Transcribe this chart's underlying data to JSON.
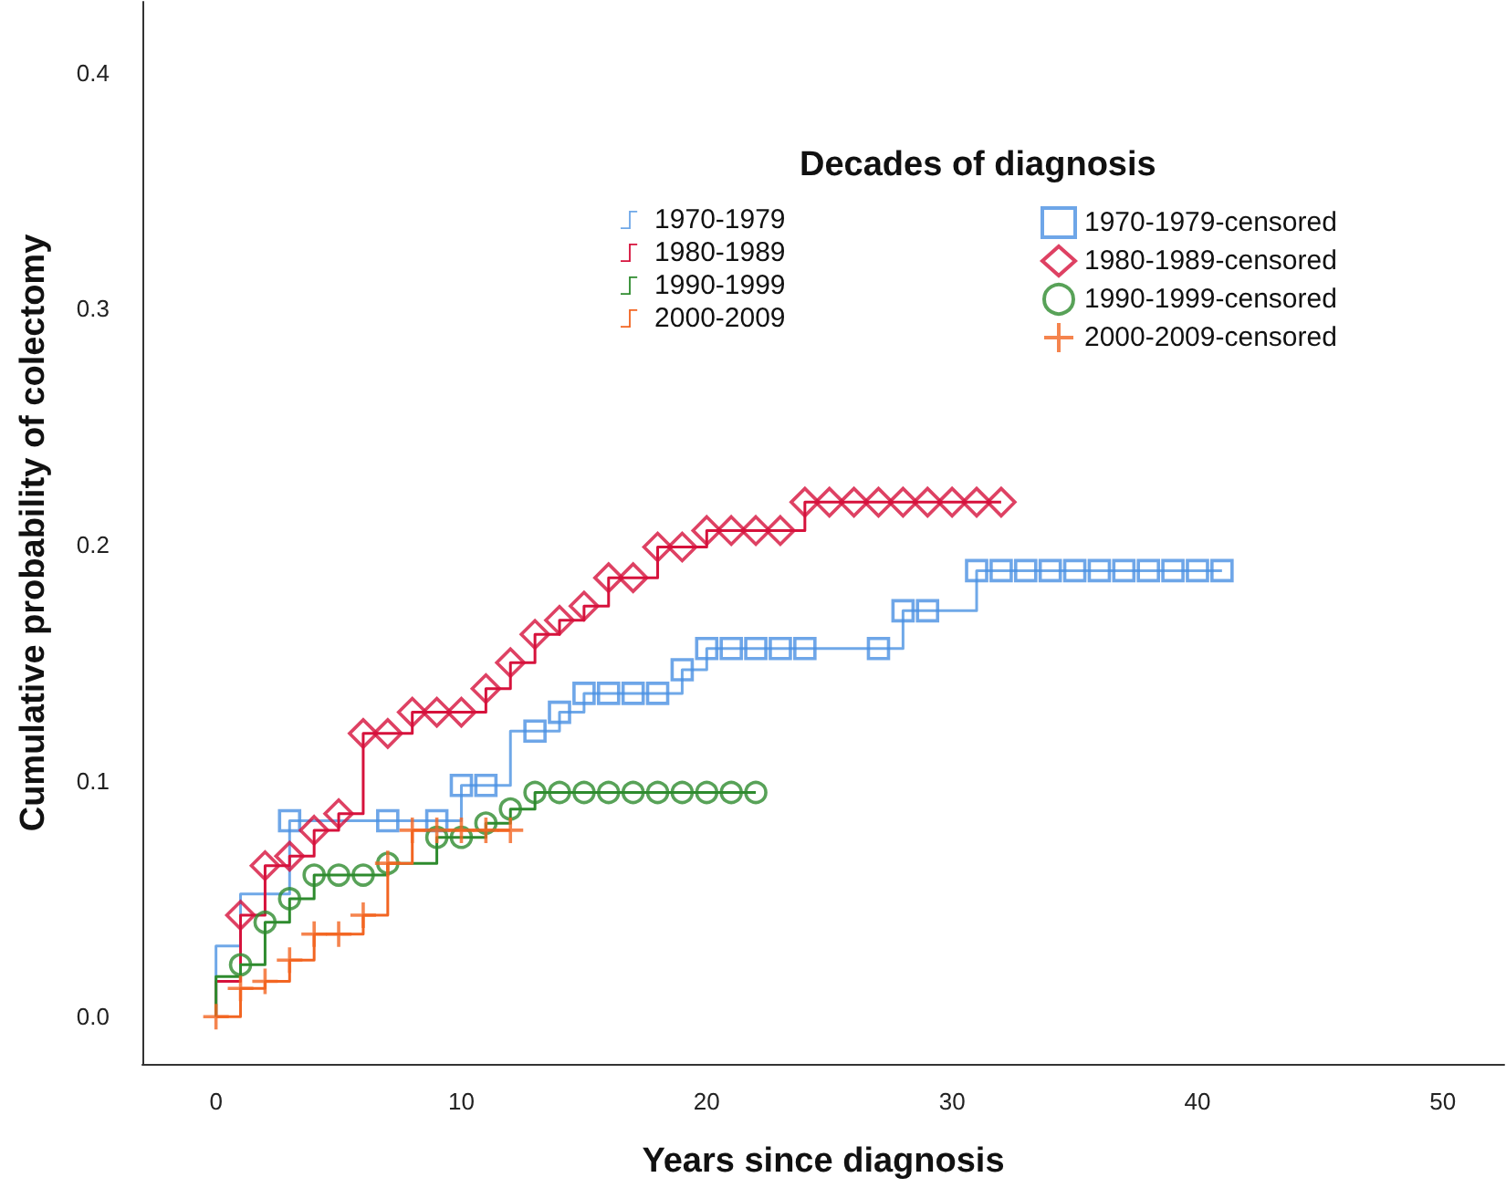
{
  "chart_data": {
    "type": "step",
    "xlabel": "Years since diagnosis",
    "ylabel": "Cumulative probability of colectomy",
    "legend_title": "Decades of diagnosis",
    "legend": "top right",
    "grid": false,
    "xlim": [
      -3,
      52.5
    ],
    "ylim": [
      -0.02,
      0.43
    ],
    "xticks": [
      0,
      10,
      20,
      30,
      40,
      50
    ],
    "yticks": [
      {
        "value": 0,
        "label": "0.0"
      },
      {
        "value": 0.1,
        "label": "0.1"
      },
      {
        "value": 0.2,
        "label": "0.2"
      },
      {
        "value": 0.3,
        "label": "0.3"
      },
      {
        "value": 0.4,
        "label": "0.4"
      }
    ],
    "series": [
      {
        "name": "1970-1979",
        "type": "step",
        "marker": "none",
        "color": "#6fa8e8",
        "x": [
          0,
          0,
          1,
          3,
          10,
          12,
          14,
          15,
          19,
          20,
          28,
          31,
          41
        ],
        "values": [
          0,
          0.03,
          0.052,
          0.083,
          0.098,
          0.121,
          0.129,
          0.137,
          0.147,
          0.156,
          0.172,
          0.189,
          0.189
        ]
      },
      {
        "name": "1980-1989",
        "type": "step",
        "marker": "none",
        "color": "#d6123c",
        "x": [
          0,
          0,
          1,
          2,
          3,
          4,
          5,
          6,
          8,
          11,
          12,
          13,
          14,
          15,
          16,
          18,
          20,
          24,
          32
        ],
        "values": [
          0,
          0.015,
          0.043,
          0.064,
          0.068,
          0.079,
          0.086,
          0.12,
          0.129,
          0.139,
          0.15,
          0.162,
          0.168,
          0.174,
          0.186,
          0.199,
          0.206,
          0.218,
          0.218
        ]
      },
      {
        "name": "1990-1999",
        "type": "step",
        "marker": "none",
        "color": "#2e8b2e",
        "x": [
          0,
          0,
          1,
          2,
          3,
          4,
          7,
          9,
          11,
          12,
          13,
          22
        ],
        "values": [
          0,
          0.017,
          0.022,
          0.04,
          0.05,
          0.06,
          0.065,
          0.076,
          0.082,
          0.088,
          0.095,
          0.095
        ]
      },
      {
        "name": "2000-2009",
        "type": "step",
        "marker": "none",
        "color": "#f26522",
        "x": [
          0,
          1,
          2,
          3,
          4,
          6,
          7,
          8,
          12
        ],
        "values": [
          0,
          0.012,
          0.015,
          0.024,
          0.035,
          0.043,
          0.065,
          0.079,
          0.079
        ]
      },
      {
        "name": "1970-1979-censored",
        "type": "scatter",
        "marker": "square",
        "color": "#4a90e2",
        "x": [
          3,
          7,
          9,
          10,
          11,
          13,
          14,
          15,
          16,
          17,
          18,
          19,
          20,
          21,
          22,
          23,
          24,
          27,
          28,
          29,
          31,
          32,
          33,
          34,
          35,
          36,
          37,
          38,
          39,
          40,
          41
        ],
        "values": [
          0.083,
          0.083,
          0.083,
          0.098,
          0.098,
          0.121,
          0.129,
          0.137,
          0.137,
          0.137,
          0.137,
          0.147,
          0.156,
          0.156,
          0.156,
          0.156,
          0.156,
          0.156,
          0.172,
          0.172,
          0.189,
          0.189,
          0.189,
          0.189,
          0.189,
          0.189,
          0.189,
          0.189,
          0.189,
          0.189,
          0.189
        ]
      },
      {
        "name": "1980-1989-censored",
        "type": "scatter",
        "marker": "diamond",
        "color": "#d6123c",
        "x": [
          1,
          2,
          3,
          4,
          5,
          6,
          7,
          8,
          9,
          10,
          11,
          12,
          13,
          14,
          15,
          16,
          17,
          18,
          19,
          20,
          21,
          22,
          23,
          24,
          25,
          26,
          27,
          28,
          29,
          30,
          31,
          32
        ],
        "values": [
          0.043,
          0.064,
          0.068,
          0.079,
          0.086,
          0.12,
          0.12,
          0.129,
          0.129,
          0.129,
          0.139,
          0.15,
          0.162,
          0.168,
          0.174,
          0.186,
          0.186,
          0.199,
          0.199,
          0.206,
          0.206,
          0.206,
          0.206,
          0.218,
          0.218,
          0.218,
          0.218,
          0.218,
          0.218,
          0.218,
          0.218,
          0.218
        ]
      },
      {
        "name": "1990-1999-censored",
        "type": "scatter",
        "marker": "circle",
        "color": "#2e8b2e",
        "x": [
          1,
          2,
          3,
          4,
          5,
          6,
          7,
          9,
          10,
          11,
          12,
          13,
          14,
          15,
          16,
          17,
          18,
          19,
          20,
          21,
          22
        ],
        "values": [
          0.022,
          0.04,
          0.05,
          0.06,
          0.06,
          0.06,
          0.065,
          0.076,
          0.076,
          0.082,
          0.088,
          0.095,
          0.095,
          0.095,
          0.095,
          0.095,
          0.095,
          0.095,
          0.095,
          0.095,
          0.095
        ]
      },
      {
        "name": "2000-2009-censored",
        "type": "scatter",
        "marker": "cross",
        "color": "#f26522",
        "x": [
          0,
          1,
          2,
          3,
          4,
          5,
          6,
          7,
          8,
          9,
          10,
          11,
          12
        ],
        "values": [
          0,
          0.012,
          0.015,
          0.024,
          0.035,
          0.035,
          0.043,
          0.065,
          0.079,
          0.079,
          0.079,
          0.079,
          0.079
        ]
      }
    ]
  }
}
